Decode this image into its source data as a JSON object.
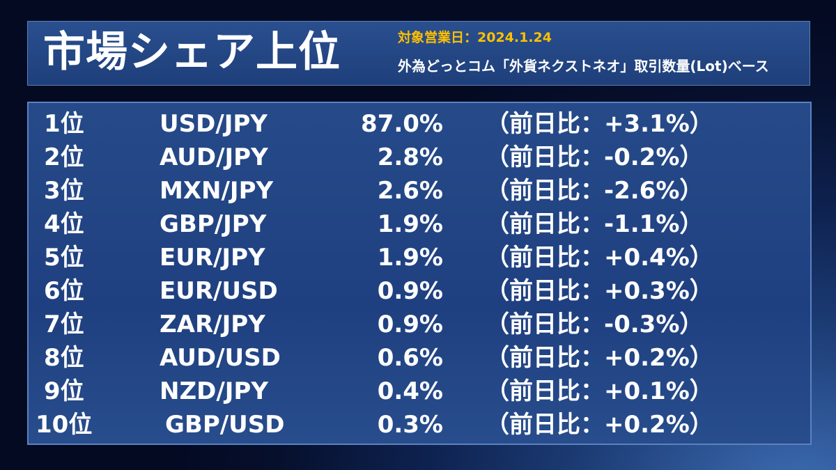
{
  "header": {
    "title": "市場シェア上位",
    "date": "対象営業日：2024.1.24",
    "subtitle": "外為どっとコム「外貨ネクストネオ」取引数量(Lot)ベース"
  },
  "rankings": [
    {
      "rank": "1位",
      "pair": "USD/JPY",
      "share": "87.0%",
      "change": "（前日比：+3.1%）"
    },
    {
      "rank": "2位",
      "pair": "AUD/JPY",
      "share": "2.8%",
      "change": "（前日比：-0.2%）"
    },
    {
      "rank": "3位",
      "pair": "MXN/JPY",
      "share": "2.6%",
      "change": "（前日比：-2.6%）"
    },
    {
      "rank": "4位",
      "pair": "GBP/JPY",
      "share": "1.9%",
      "change": "（前日比：-1.1%）"
    },
    {
      "rank": "5位",
      "pair": "EUR/JPY",
      "share": "1.9%",
      "change": "（前日比：+0.4%）"
    },
    {
      "rank": "6位",
      "pair": "EUR/USD",
      "share": "0.9%",
      "change": "（前日比：+0.3%）"
    },
    {
      "rank": "7位",
      "pair": "ZAR/JPY",
      "share": "0.9%",
      "change": "（前日比：-0.3%）"
    },
    {
      "rank": "8位",
      "pair": "AUD/USD",
      "share": "0.6%",
      "change": "（前日比：+0.2%）"
    },
    {
      "rank": "9位",
      "pair": "NZD/JPY",
      "share": "0.4%",
      "change": "（前日比：+0.1%）"
    },
    {
      "rank": "10位",
      "pair": "GBP/USD",
      "share": "0.3%",
      "change": "（前日比：+0.2%）"
    }
  ],
  "colors": {
    "accent": "#ffc000",
    "panel": "#1f4080",
    "text": "#ffffff"
  }
}
